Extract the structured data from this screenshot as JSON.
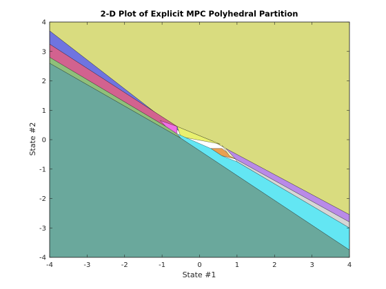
{
  "chart_data": {
    "type": "area",
    "title": "2-D Plot of Explicit MPC Polyhedral Partition",
    "xlabel": "State #1",
    "ylabel": "State #2",
    "xlim": [
      -4,
      4
    ],
    "ylim": [
      -4,
      4
    ],
    "xticks": [
      "-4",
      "-3",
      "-2",
      "-1",
      "0",
      "1",
      "2",
      "3",
      "4"
    ],
    "yticks": [
      "-4",
      "-3",
      "-2",
      "-1",
      "0",
      "1",
      "2",
      "3",
      "4"
    ],
    "grid": false,
    "regions": [
      {
        "color": "#d9dc7f",
        "vertices": [
          [
            -4,
            3.7
          ],
          [
            -4,
            4
          ],
          [
            4,
            4
          ],
          [
            4,
            -2.55
          ],
          [
            0.7,
            -0.3
          ],
          [
            0.35,
            -0.05
          ],
          [
            -0.5,
            0.25
          ]
        ]
      },
      {
        "color": "#6f74e0",
        "vertices": [
          [
            -4,
            3.25
          ],
          [
            -4,
            3.7
          ],
          [
            -0.5,
            0.25
          ],
          [
            0.35,
            -0.05
          ],
          [
            -0.6,
            0.45
          ]
        ]
      },
      {
        "color": "#d2628f",
        "vertices": [
          [
            -4,
            2.8
          ],
          [
            -4,
            3.25
          ],
          [
            -0.6,
            0.45
          ],
          [
            -0.7,
            0.3
          ]
        ]
      },
      {
        "color": "#8fbf7a",
        "vertices": [
          [
            -4,
            2.6
          ],
          [
            -4,
            2.8
          ],
          [
            -0.7,
            0.3
          ],
          [
            -0.5,
            0.05
          ]
        ]
      },
      {
        "color": "#ef6fe6",
        "vertices": [
          [
            -1.05,
            0.65
          ],
          [
            -0.6,
            0.45
          ],
          [
            -0.6,
            0.2
          ],
          [
            -0.9,
            0.45
          ]
        ]
      },
      {
        "color": "#e8f06f",
        "vertices": [
          [
            -0.6,
            0.45
          ],
          [
            0.35,
            -0.05
          ],
          [
            0.55,
            -0.15
          ],
          [
            -0.5,
            0.1
          ]
        ]
      },
      {
        "color": "#e8a050",
        "vertices": [
          [
            0.3,
            -0.3
          ],
          [
            0.6,
            -0.3
          ],
          [
            0.95,
            -0.65
          ],
          [
            0.6,
            -0.55
          ]
        ]
      },
      {
        "color": "#f4f4c0",
        "vertices": [
          [
            0.6,
            -0.2
          ],
          [
            0.7,
            -0.3
          ],
          [
            0.95,
            -0.65
          ],
          [
            0.8,
            -0.55
          ]
        ]
      },
      {
        "color": "#b98ae8",
        "vertices": [
          [
            0.7,
            -0.3
          ],
          [
            4,
            -2.55
          ],
          [
            4,
            -2.8
          ],
          [
            0.95,
            -0.65
          ]
        ]
      },
      {
        "color": "#d6d6d6",
        "vertices": [
          [
            0.95,
            -0.65
          ],
          [
            4,
            -2.8
          ],
          [
            4,
            -3.0
          ],
          [
            1.0,
            -0.75
          ]
        ]
      },
      {
        "color": "#63e6f3",
        "vertices": [
          [
            -0.5,
            0.05
          ],
          [
            -0.6,
            0.2
          ],
          [
            0.3,
            -0.3
          ],
          [
            0.6,
            -0.55
          ],
          [
            1.0,
            -0.75
          ],
          [
            4,
            -3.0
          ],
          [
            4,
            -3.75
          ]
        ]
      },
      {
        "color": "#6aa89c",
        "vertices": [
          [
            -4,
            -4
          ],
          [
            -4,
            2.6
          ],
          [
            -0.5,
            0.05
          ],
          [
            4,
            -3.75
          ],
          [
            4,
            -4
          ]
        ]
      }
    ]
  }
}
